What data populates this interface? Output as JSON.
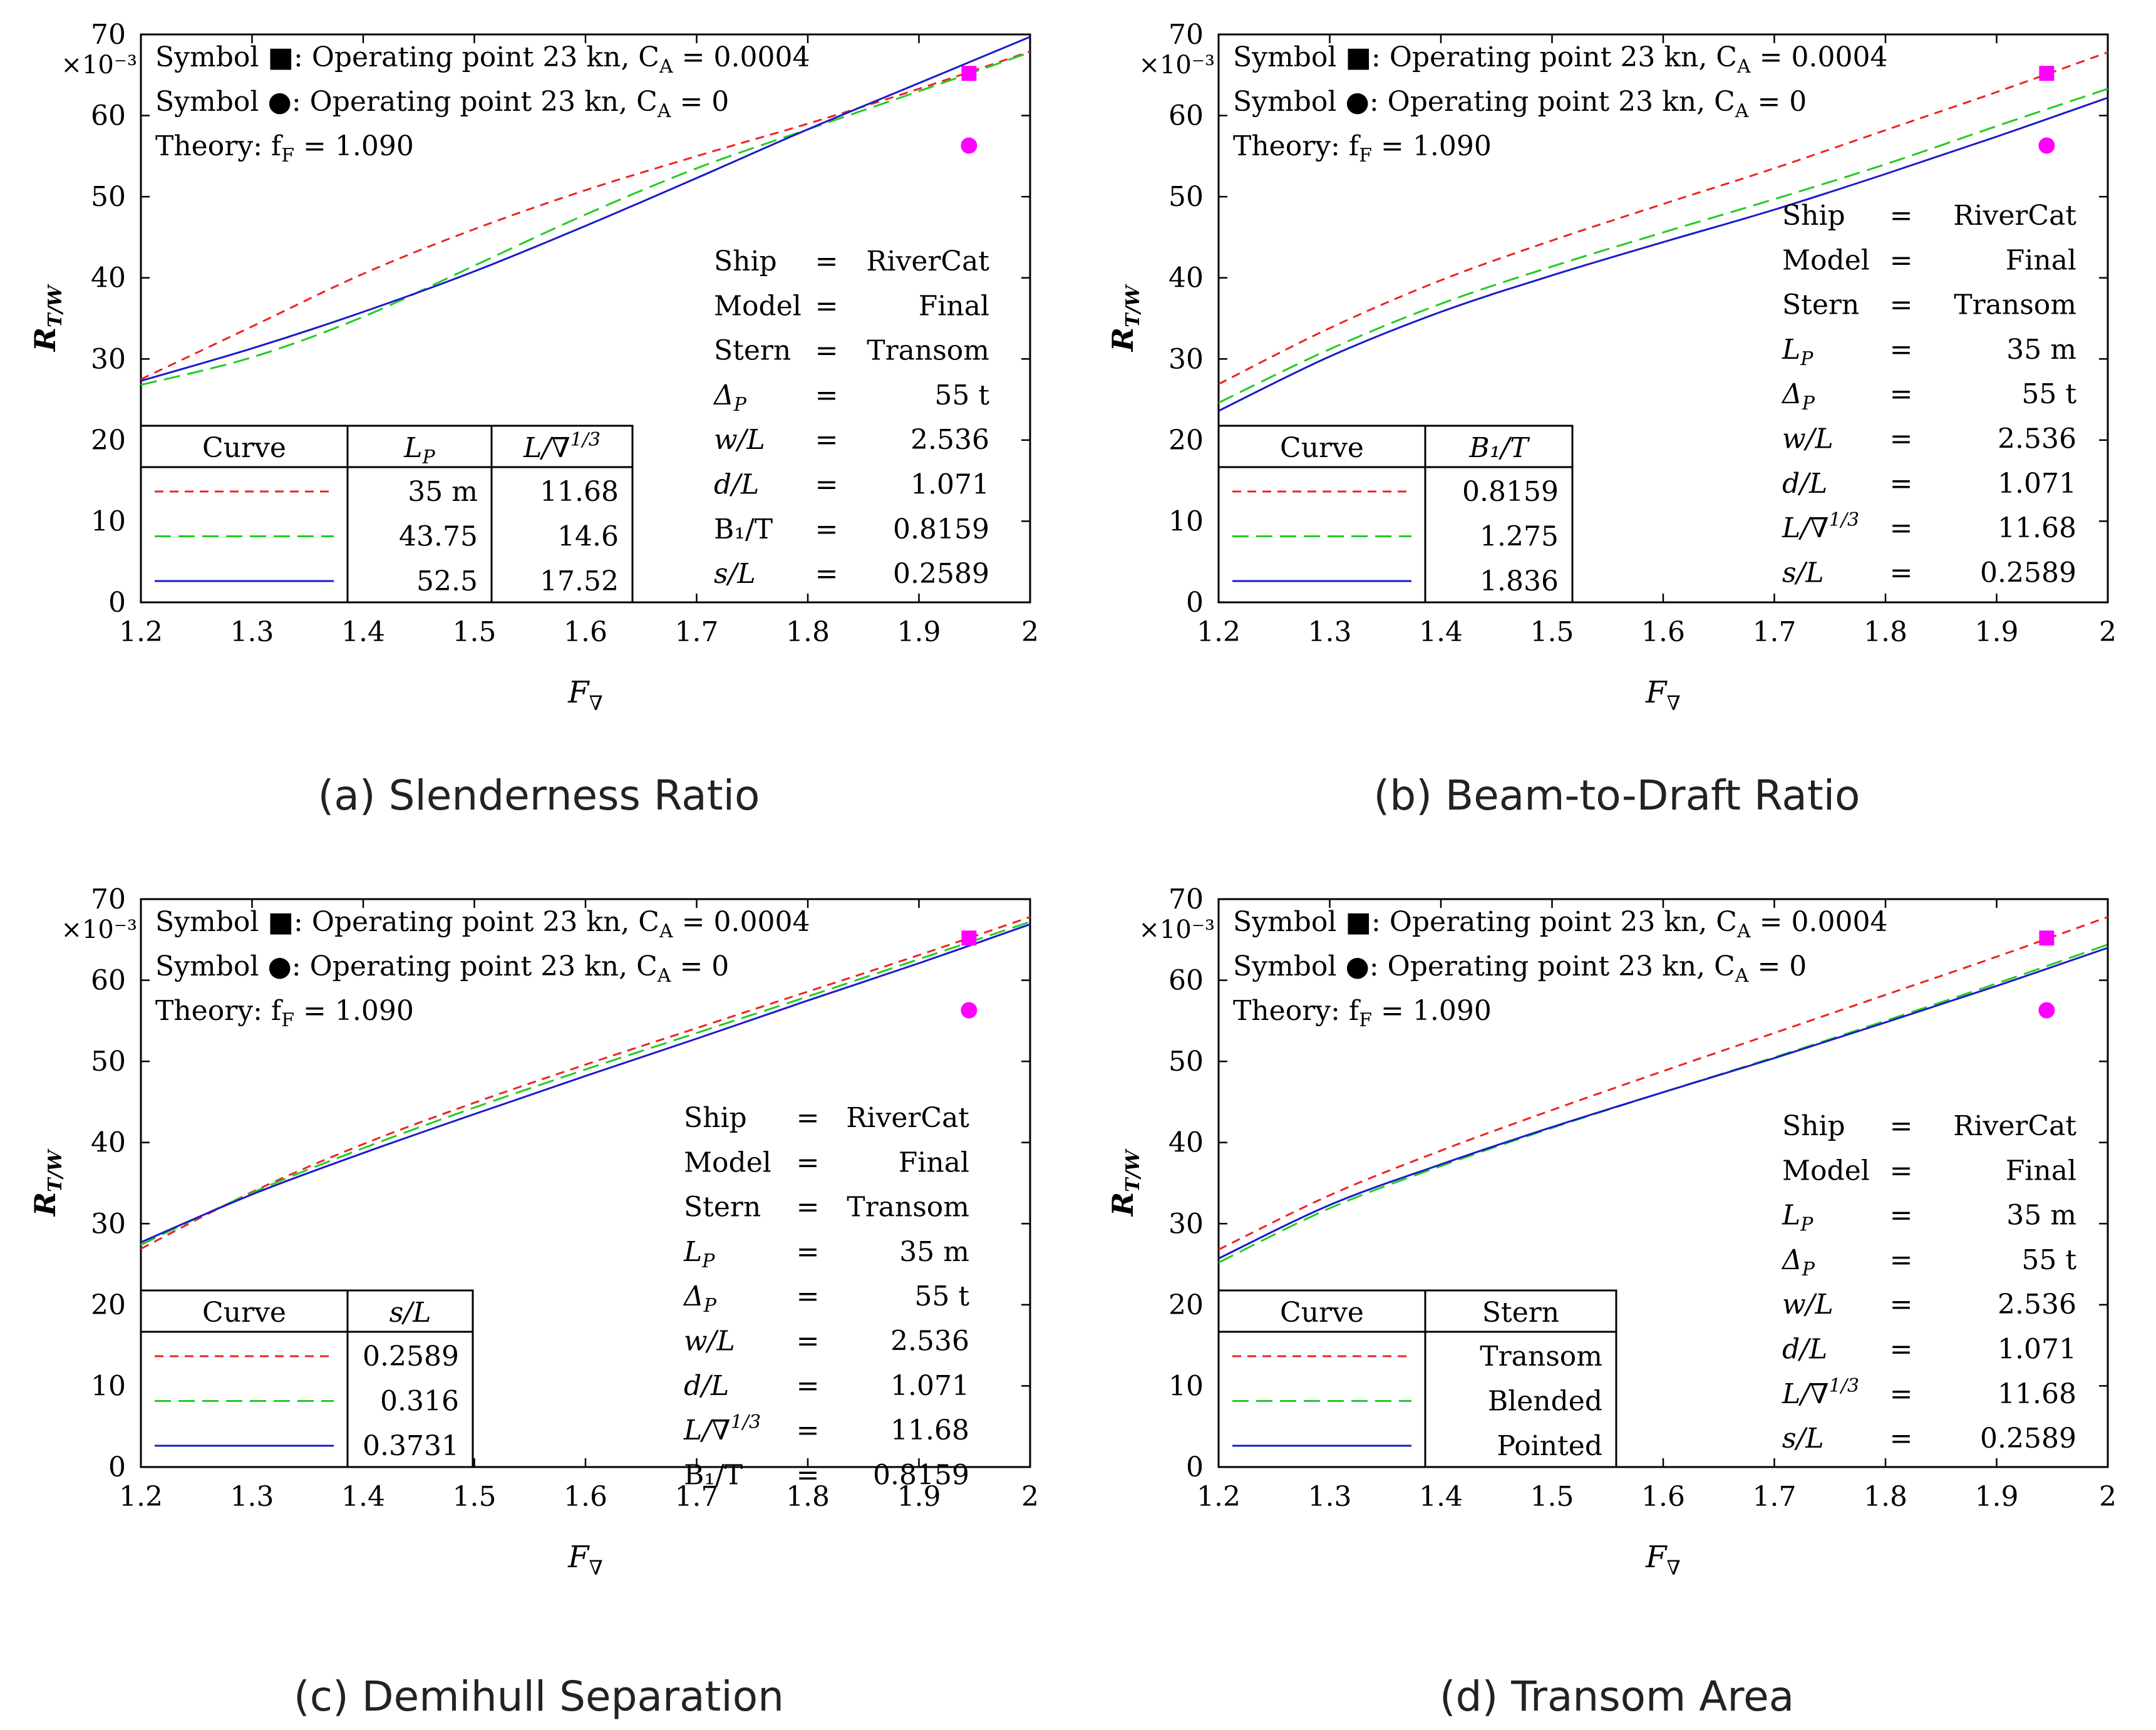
{
  "chart_data": [
    {
      "id": "a",
      "type": "line",
      "caption": "(a) Slenderness Ratio",
      "xlabel": "F",
      "xlabel_sub": "∇",
      "ylabel": "R_T/W",
      "yscale_label": "×10⁻³",
      "xlim": [
        1.2,
        2.0
      ],
      "ylim": [
        0,
        70
      ],
      "xticks": [
        "1.2",
        "1.3",
        "1.4",
        "1.5",
        "1.6",
        "1.7",
        "1.8",
        "1.9",
        "2"
      ],
      "yticks": [
        "0",
        "10",
        "20",
        "30",
        "40",
        "50",
        "60",
        "70"
      ],
      "annotations": [
        "Symbol ■: Operating point 23 kn, C_A = 0.0004",
        "Symbol ●: Operating point 23 kn, C_A = 0",
        "Theory: f_F = 1.090"
      ],
      "points": [
        {
          "marker": "square",
          "x": 1.945,
          "y": 65.2,
          "color": "#ff00ff"
        },
        {
          "marker": "circle",
          "x": 1.945,
          "y": 56.3,
          "color": "#ff00ff"
        }
      ],
      "params": [
        [
          "Ship",
          "=",
          "RiverCat"
        ],
        [
          "Model",
          "=",
          "Final"
        ],
        [
          "Stern",
          "=",
          "Transom"
        ],
        [
          "Δ_P",
          "=",
          "55 t"
        ],
        [
          "w/L",
          "=",
          "2.536"
        ],
        [
          "d/L",
          "=",
          "1.071"
        ],
        [
          "B₁/T",
          "=",
          "0.8159"
        ],
        [
          "s/L",
          "=",
          "0.2589"
        ]
      ],
      "legend_headers": [
        "Curve",
        "L_P",
        "L/∇^1/3"
      ],
      "legend_rows": [
        [
          "35 m",
          "11.68"
        ],
        [
          "43.75",
          "14.6"
        ],
        [
          "52.5",
          "17.52"
        ]
      ],
      "series": [
        {
          "style": "red-dash",
          "color": "#ee2222",
          "x": [
            1.2,
            1.3,
            1.4,
            1.5,
            1.6,
            1.7,
            1.8,
            1.9,
            2.0
          ],
          "values": [
            27.5,
            34,
            40.5,
            46,
            50.8,
            55,
            59,
            63.3,
            67.9
          ]
        },
        {
          "style": "green-dash",
          "color": "#22cc22",
          "x": [
            1.2,
            1.3,
            1.4,
            1.5,
            1.6,
            1.7,
            1.8,
            1.9,
            2.0
          ],
          "values": [
            26.8,
            30.2,
            35.2,
            41.5,
            47.8,
            53.5,
            58.3,
            63,
            67.8
          ]
        },
        {
          "style": "blue-solid",
          "color": "#1a1acc",
          "x": [
            1.2,
            1.3,
            1.4,
            1.5,
            1.6,
            1.7,
            1.8,
            1.9,
            2.0
          ],
          "values": [
            27.3,
            31.3,
            35.8,
            40.8,
            46.4,
            52.3,
            58.3,
            64,
            69.7
          ]
        }
      ]
    },
    {
      "id": "b",
      "type": "line",
      "caption": "(b) Beam-to-Draft Ratio",
      "xlabel": "F",
      "xlabel_sub": "∇",
      "ylabel": "R_T/W",
      "yscale_label": "×10⁻³",
      "xlim": [
        1.2,
        2.0
      ],
      "ylim": [
        0,
        70
      ],
      "xticks": [
        "1.2",
        "1.3",
        "1.4",
        "1.5",
        "1.6",
        "1.7",
        "1.8",
        "1.9",
        "2"
      ],
      "yticks": [
        "0",
        "10",
        "20",
        "30",
        "40",
        "50",
        "60",
        "70"
      ],
      "annotations": [
        "Symbol ■: Operating point 23 kn, C_A = 0.0004",
        "Symbol ●: Operating point 23 kn, C_A = 0",
        "Theory: f_F = 1.090"
      ],
      "points": [
        {
          "marker": "square",
          "x": 1.945,
          "y": 65.2,
          "color": "#ff00ff"
        },
        {
          "marker": "circle",
          "x": 1.945,
          "y": 56.3,
          "color": "#ff00ff"
        }
      ],
      "params": [
        [
          "Ship",
          "=",
          "RiverCat"
        ],
        [
          "Model",
          "=",
          "Final"
        ],
        [
          "Stern",
          "=",
          "Transom"
        ],
        [
          "L_P",
          "=",
          "35 m"
        ],
        [
          "Δ_P",
          "=",
          "55 t"
        ],
        [
          "w/L",
          "=",
          "2.536"
        ],
        [
          "d/L",
          "=",
          "1.071"
        ],
        [
          "L/∇^1/3",
          "=",
          "11.68"
        ],
        [
          "s/L",
          "=",
          "0.2589"
        ]
      ],
      "legend_headers": [
        "Curve",
        "B₁/T"
      ],
      "legend_rows": [
        [
          "0.8159"
        ],
        [
          "1.275"
        ],
        [
          "1.836"
        ]
      ],
      "series": [
        {
          "style": "red-dash",
          "color": "#ee2222",
          "x": [
            1.2,
            1.3,
            1.4,
            1.5,
            1.6,
            1.7,
            1.8,
            1.9,
            2.0
          ],
          "values": [
            26.9,
            33.8,
            39.7,
            44.6,
            49.1,
            53.5,
            58.2,
            62.9,
            67.8
          ]
        },
        {
          "style": "green-dash",
          "color": "#22cc22",
          "x": [
            1.2,
            1.3,
            1.4,
            1.5,
            1.6,
            1.7,
            1.8,
            1.9,
            2.0
          ],
          "values": [
            24.6,
            31.2,
            36.8,
            41.4,
            45.6,
            49.7,
            54,
            58.7,
            63.3
          ]
        },
        {
          "style": "blue-solid",
          "color": "#1a1acc",
          "x": [
            1.2,
            1.3,
            1.4,
            1.5,
            1.6,
            1.7,
            1.8,
            1.9,
            2.0
          ],
          "values": [
            23.6,
            30.3,
            35.8,
            40.3,
            44.4,
            48.4,
            52.8,
            57.4,
            62.2
          ]
        }
      ]
    },
    {
      "id": "c",
      "type": "line",
      "caption": "(c) Demihull Separation",
      "xlabel": "F",
      "xlabel_sub": "∇",
      "ylabel": "R_T/W",
      "yscale_label": "×10⁻³",
      "xlim": [
        1.2,
        2.0
      ],
      "ylim": [
        0,
        70
      ],
      "xticks": [
        "1.2",
        "1.3",
        "1.4",
        "1.5",
        "1.6",
        "1.7",
        "1.8",
        "1.9",
        "2"
      ],
      "yticks": [
        "0",
        "10",
        "20",
        "30",
        "40",
        "50",
        "60",
        "70"
      ],
      "annotations": [
        "Symbol ■: Operating point 23 kn, C_A = 0.0004",
        "Symbol ●: Operating point 23 kn, C_A = 0",
        "Theory: f_F = 1.090"
      ],
      "points": [
        {
          "marker": "square",
          "x": 1.945,
          "y": 65.2,
          "color": "#ff00ff"
        },
        {
          "marker": "circle",
          "x": 1.945,
          "y": 56.3,
          "color": "#ff00ff"
        }
      ],
      "params": [
        [
          "Ship",
          "=",
          "RiverCat"
        ],
        [
          "Model",
          "=",
          "Final"
        ],
        [
          "Stern",
          "=",
          "Transom"
        ],
        [
          "L_P",
          "=",
          "35 m"
        ],
        [
          "Δ_P",
          "=",
          "55 t"
        ],
        [
          "w/L",
          "=",
          "2.536"
        ],
        [
          "d/L",
          "=",
          "1.071"
        ],
        [
          "L/∇^1/3",
          "=",
          "11.68"
        ],
        [
          "B₁/T",
          "=",
          "0.8159"
        ]
      ],
      "legend_headers": [
        "Curve",
        "s/L"
      ],
      "legend_rows": [
        [
          "0.2589"
        ],
        [
          "0.316"
        ],
        [
          "0.3731"
        ]
      ],
      "series": [
        {
          "style": "red-dash",
          "color": "#ee2222",
          "x": [
            1.2,
            1.3,
            1.4,
            1.5,
            1.6,
            1.7,
            1.8,
            1.9,
            2.0
          ],
          "values": [
            26.9,
            33.9,
            39.8,
            44.9,
            49.6,
            54.1,
            58.6,
            63.1,
            67.8
          ]
        },
        {
          "style": "green-dash",
          "color": "#22cc22",
          "x": [
            1.2,
            1.3,
            1.4,
            1.5,
            1.6,
            1.7,
            1.8,
            1.9,
            2.0
          ],
          "values": [
            27.4,
            33.8,
            39.3,
            44.3,
            49,
            53.5,
            58,
            62.6,
            67.2
          ]
        },
        {
          "style": "blue-solid",
          "color": "#1a1acc",
          "x": [
            1.2,
            1.3,
            1.4,
            1.5,
            1.6,
            1.7,
            1.8,
            1.9,
            2.0
          ],
          "values": [
            27.7,
            33.6,
            38.7,
            43.5,
            48.2,
            52.8,
            57.5,
            62.1,
            66.9
          ]
        }
      ]
    },
    {
      "id": "d",
      "type": "line",
      "caption": "(d) Transom Area",
      "xlabel": "F",
      "xlabel_sub": "∇",
      "ylabel": "R_T/W",
      "yscale_label": "×10⁻³",
      "xlim": [
        1.2,
        2.0
      ],
      "ylim": [
        0,
        70
      ],
      "xticks": [
        "1.2",
        "1.3",
        "1.4",
        "1.5",
        "1.6",
        "1.7",
        "1.8",
        "1.9",
        "2"
      ],
      "yticks": [
        "0",
        "10",
        "20",
        "30",
        "40",
        "50",
        "60",
        "70"
      ],
      "annotations": [
        "Symbol ■: Operating point 23 kn, C_A = 0.0004",
        "Symbol ●: Operating point 23 kn, C_A = 0",
        "Theory: f_F = 1.090"
      ],
      "points": [
        {
          "marker": "square",
          "x": 1.945,
          "y": 65.2,
          "color": "#ff00ff"
        },
        {
          "marker": "circle",
          "x": 1.945,
          "y": 56.3,
          "color": "#ff00ff"
        }
      ],
      "params": [
        [
          "Ship",
          "=",
          "RiverCat"
        ],
        [
          "Model",
          "=",
          "Final"
        ],
        [
          "L_P",
          "=",
          "35 m"
        ],
        [
          "Δ_P",
          "=",
          "55 t"
        ],
        [
          "w/L",
          "=",
          "2.536"
        ],
        [
          "d/L",
          "=",
          "1.071"
        ],
        [
          "L/∇^1/3",
          "=",
          "11.68"
        ],
        [
          "s/L",
          "=",
          "0.2589"
        ]
      ],
      "legend_headers": [
        "Curve",
        "Stern"
      ],
      "legend_rows": [
        [
          "Transom"
        ],
        [
          "Blended"
        ],
        [
          "Pointed"
        ]
      ],
      "series": [
        {
          "style": "red-dash",
          "color": "#ee2222",
          "x": [
            1.2,
            1.3,
            1.4,
            1.5,
            1.6,
            1.7,
            1.8,
            1.9,
            2.0
          ],
          "values": [
            26.8,
            33.5,
            39,
            44,
            48.8,
            53.5,
            58.2,
            62.9,
            67.8
          ]
        },
        {
          "style": "green-dash",
          "color": "#22cc22",
          "x": [
            1.2,
            1.3,
            1.4,
            1.5,
            1.6,
            1.7,
            1.8,
            1.9,
            2.0
          ],
          "values": [
            25.2,
            31.9,
            37.1,
            41.8,
            46.2,
            50.5,
            55,
            59.6,
            64.4
          ]
        },
        {
          "style": "blue-solid",
          "color": "#1a1acc",
          "x": [
            1.2,
            1.3,
            1.4,
            1.5,
            1.6,
            1.7,
            1.8,
            1.9,
            2.0
          ],
          "values": [
            25.7,
            32.3,
            37.3,
            41.9,
            46.2,
            50.4,
            54.8,
            59.3,
            64
          ]
        }
      ]
    }
  ]
}
